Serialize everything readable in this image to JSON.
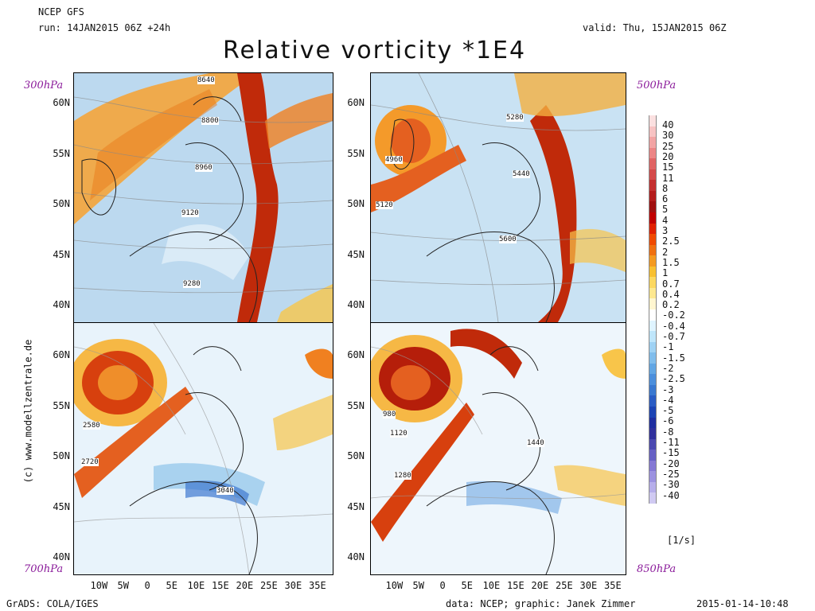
{
  "header": {
    "model": "NCEP GFS",
    "run": "run: 14JAN2015 06Z +24h",
    "valid": "valid: Thu, 15JAN2015 06Z",
    "title": "Relative vorticity *1E4"
  },
  "panels": [
    {
      "level": "300hPa",
      "contours": [
        "8640",
        "8800",
        "8960",
        "9120",
        "9280"
      ]
    },
    {
      "level": "500hPa",
      "contours": [
        "5280",
        "4960",
        "5440",
        "5120",
        "5600"
      ]
    },
    {
      "level": "700hPa",
      "contours": [
        "2580",
        "2720",
        "3040"
      ]
    },
    {
      "level": "850hPa",
      "contours": [
        "980",
        "1120",
        "1440",
        "1280"
      ]
    }
  ],
  "axes": {
    "lat_top": [
      "60N",
      "55N",
      "50N",
      "45N",
      "40N"
    ],
    "lat_bottom": [
      "60N",
      "55N",
      "50N",
      "45N",
      "40N"
    ],
    "lon": [
      "10W",
      "5W",
      "0",
      "5E",
      "10E",
      "15E",
      "20E",
      "25E",
      "30E",
      "35E"
    ]
  },
  "colorbar": {
    "labels": [
      "40",
      "30",
      "25",
      "20",
      "15",
      "11",
      "8",
      "6",
      "5",
      "4",
      "3",
      "2.5",
      "2",
      "1.5",
      "1",
      "0.7",
      "0.4",
      "0.2",
      "-0.2",
      "-0.4",
      "-0.7",
      "-1",
      "-1.5",
      "-2",
      "-2.5",
      "-3",
      "-4",
      "-5",
      "-6",
      "-8",
      "-11",
      "-15",
      "-20",
      "-25",
      "-30",
      "-40"
    ],
    "colors": [
      "#fbe0e0",
      "#f7c3c3",
      "#f2a4a4",
      "#ec8585",
      "#e06464",
      "#d44a4a",
      "#c43030",
      "#b41c1c",
      "#a01010",
      "#c00000",
      "#e02000",
      "#f04a00",
      "#f07010",
      "#f49a20",
      "#f8c030",
      "#fcd860",
      "#fde890",
      "#fff6d0",
      "#ffffff",
      "#dff4ff",
      "#bfe6fb",
      "#9fd2f4",
      "#80bdec",
      "#62a6e4",
      "#4c8fdc",
      "#3a78d0",
      "#2a5cc4",
      "#1c44b4",
      "#1f2ea0",
      "#30309c",
      "#4a48b0",
      "#6660c4",
      "#8478d4",
      "#9c92e0",
      "#b6aeea",
      "#d0caf2"
    ],
    "unit": "[1/s]"
  },
  "footer": {
    "left": "GrADS: COLA/IGES",
    "center": "data: NCEP; graphic: Janek Zimmer",
    "right": "2015-01-14-10:48",
    "site": "(c)  www.modellzentrale.de"
  }
}
